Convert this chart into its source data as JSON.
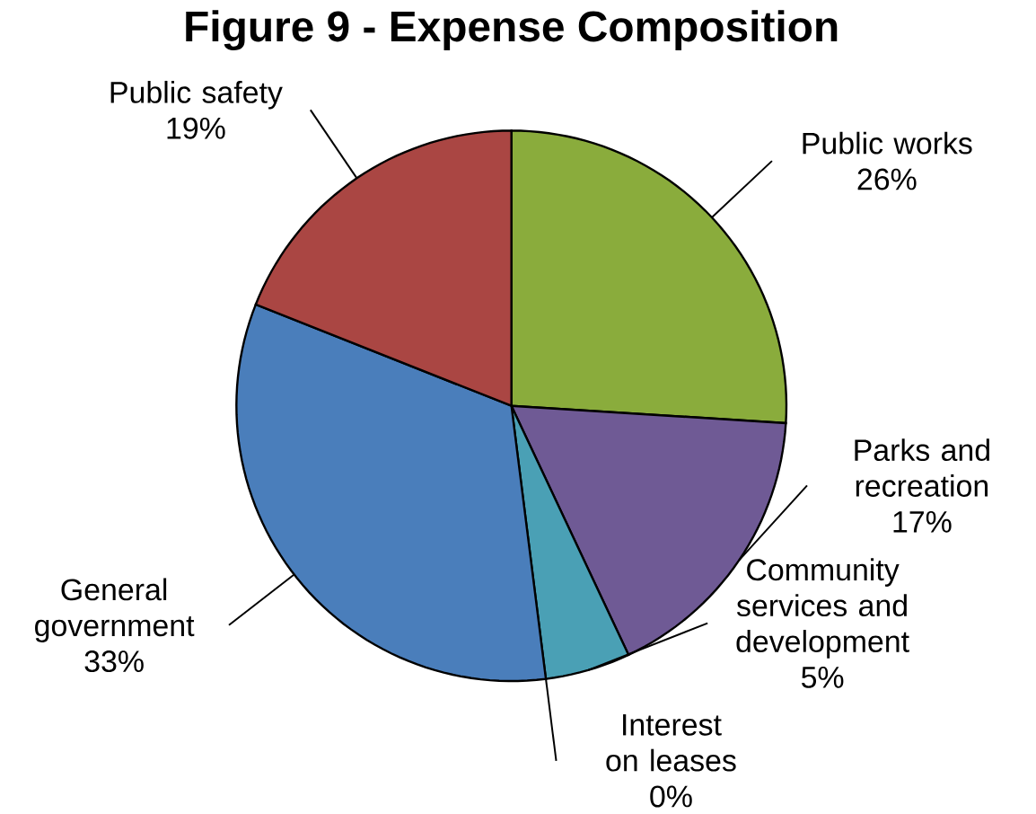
{
  "chart_data": {
    "type": "pie",
    "title": "Figure 9 - Expense Composition",
    "categories": [
      "Public works",
      "Parks and recreation",
      "Community services and development",
      "Interest on leases",
      "General government",
      "Public safety"
    ],
    "values": [
      26,
      17,
      5,
      0,
      33,
      19
    ],
    "colors": [
      "#8aac3c",
      "#6f5a95",
      "#4aa0b5",
      "#2e6e80",
      "#4a7ebb",
      "#aa4643"
    ],
    "value_labels": [
      "26%",
      "17%",
      "5%",
      "0%",
      "33%",
      "19%"
    ]
  }
}
